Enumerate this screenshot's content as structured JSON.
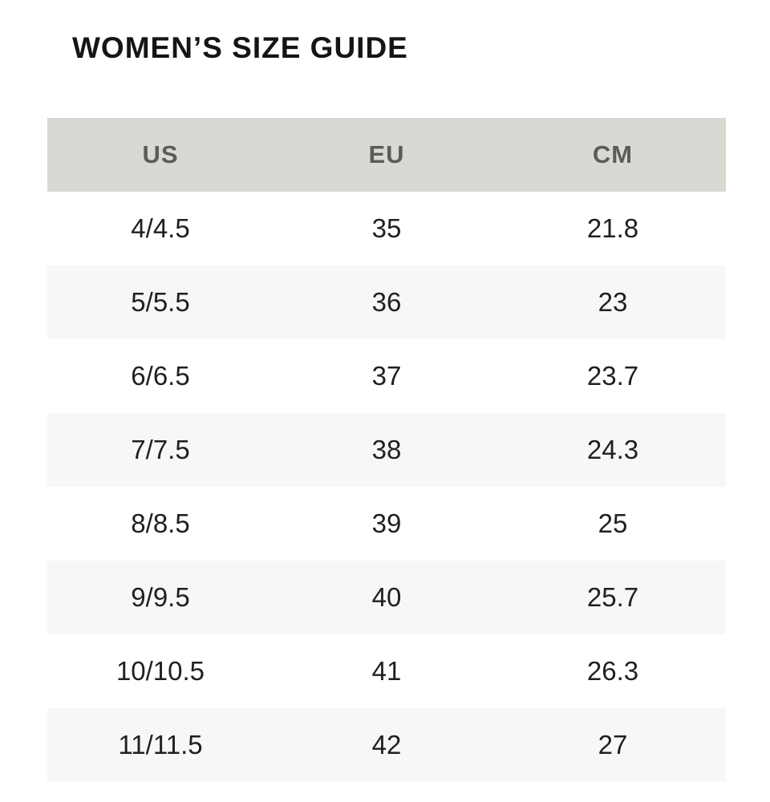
{
  "title": "WOMEN’S SIZE GUIDE",
  "table": {
    "headers": [
      "US",
      "EU",
      "CM"
    ],
    "rows": [
      [
        "4/4.5",
        "35",
        "21.8"
      ],
      [
        "5/5.5",
        "36",
        "23"
      ],
      [
        "6/6.5",
        "37",
        "23.7"
      ],
      [
        "7/7.5",
        "38",
        "24.3"
      ],
      [
        "8/8.5",
        "39",
        "25"
      ],
      [
        "9/9.5",
        "40",
        "25.7"
      ],
      [
        "10/10.5",
        "41",
        "26.3"
      ],
      [
        "11/11.5",
        "42",
        "27"
      ]
    ]
  },
  "colors": {
    "header_background": "#dad8d3",
    "striped_row_background": "#f6f7f9",
    "text": "#202020"
  }
}
